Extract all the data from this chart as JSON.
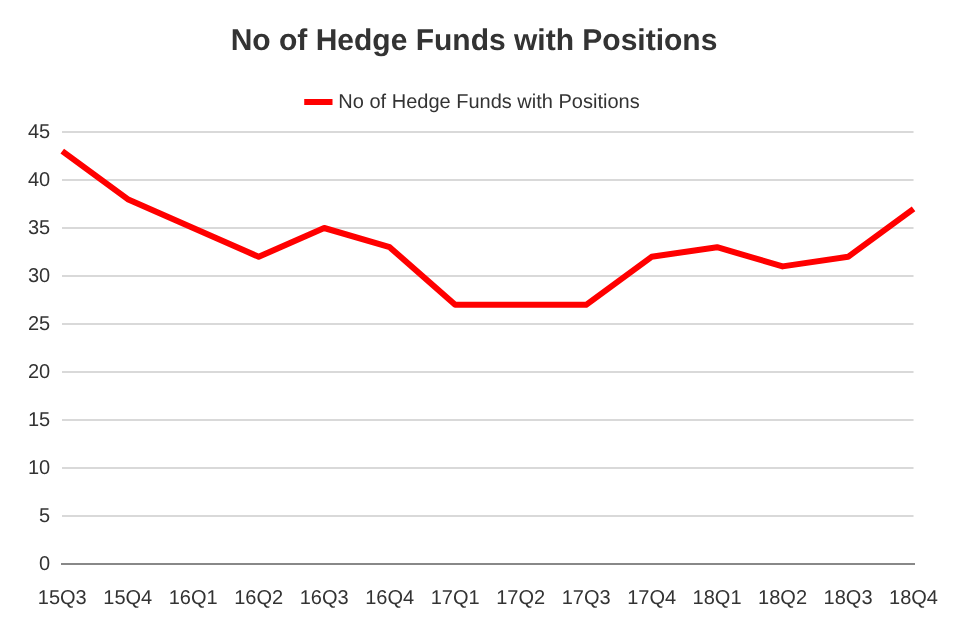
{
  "chart_data": {
    "type": "line",
    "title": "No of Hedge Funds with Positions",
    "categories": [
      "15Q3",
      "15Q4",
      "16Q1",
      "16Q2",
      "16Q3",
      "16Q4",
      "17Q1",
      "17Q2",
      "17Q3",
      "17Q4",
      "18Q1",
      "18Q2",
      "18Q3",
      "18Q4"
    ],
    "series": [
      {
        "name": "No of Hedge Funds with Positions",
        "color": "#ff0000",
        "values": [
          43,
          38,
          35,
          32,
          35,
          33,
          27,
          27,
          27,
          32,
          33,
          31,
          32,
          37
        ]
      }
    ],
    "ylim": [
      0,
      45
    ],
    "yticks": [
      0,
      5,
      10,
      15,
      20,
      25,
      30,
      35,
      40,
      45
    ],
    "grid": "y",
    "legend": "top",
    "marker": "none",
    "line_style": "solid"
  }
}
